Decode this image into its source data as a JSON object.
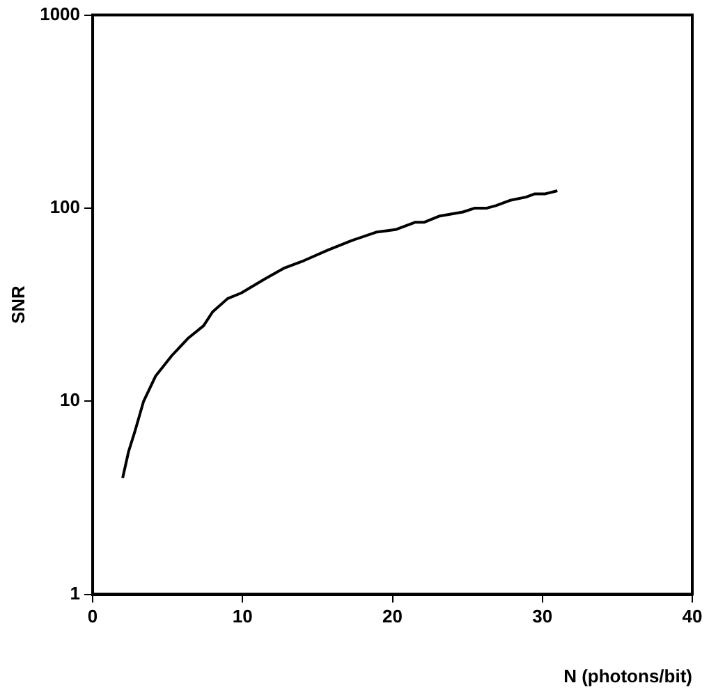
{
  "chart_data": {
    "type": "line",
    "xlabel": "N (photons/bit)",
    "ylabel": "SNR",
    "log": "y",
    "grid": false,
    "legend": false,
    "marker": "none",
    "line_style": "solid",
    "xlim": [
      0,
      40
    ],
    "xticks": [
      0,
      10,
      20,
      30,
      40
    ],
    "ylim": [
      1,
      1000
    ],
    "yticks": [
      1,
      10,
      100,
      1000
    ],
    "series": [
      {
        "color": "#000000",
        "x": [
          2.0,
          2.4,
          2.8,
          3.4,
          4.2,
          5.3,
          6.4,
          7.4,
          8.0,
          9.0,
          9.9,
          11.5,
          12.8,
          14.1,
          15.7,
          17.3,
          18.9,
          20.2,
          21.5,
          22.1,
          23.1,
          24.7,
          25.5,
          26.3,
          26.9,
          27.9,
          28.9,
          29.5,
          30.2,
          31.0
        ],
        "values": [
          4.0,
          5.5,
          6.9,
          10,
          13.5,
          17.3,
          21.3,
          24.6,
          29,
          34,
          36.3,
          43,
          49,
          53.5,
          60.7,
          68,
          75,
          77.4,
          84.4,
          84.4,
          90.8,
          95.5,
          100,
          100,
          103,
          110,
          114,
          118.6,
          118.6,
          123
        ]
      }
    ]
  }
}
